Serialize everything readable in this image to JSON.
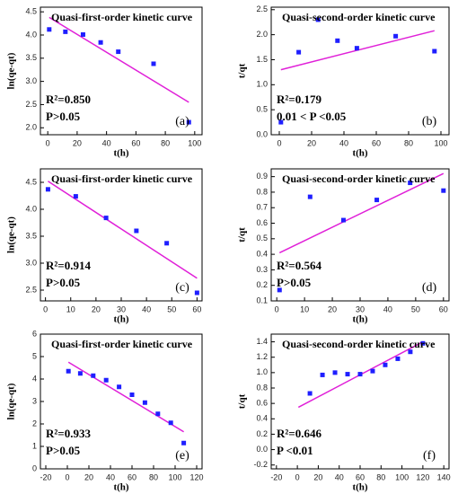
{
  "chart_data": [
    {
      "type": "scatter",
      "title": "Quasi-first-order kinetic curve",
      "xlabel": "t(h)",
      "ylabel": "ln(qe-qt)",
      "x": [
        1,
        12,
        24,
        36,
        48,
        72,
        96
      ],
      "values": [
        4.12,
        4.07,
        4.01,
        3.84,
        3.64,
        3.38,
        2.12
      ],
      "fit": {
        "x": [
          1,
          96
        ],
        "y": [
          4.38,
          2.55
        ]
      },
      "annotations": [
        "R²=0.850",
        "P>0.05"
      ],
      "panel_label": "(a)",
      "xlim": [
        -5,
        105
      ],
      "xticks": [
        0,
        20,
        40,
        60,
        80,
        100
      ],
      "ylim": [
        1.85,
        4.6
      ],
      "yticks": [
        {
          "value": 2,
          "label": "2.0"
        },
        2.5,
        {
          "value": 3,
          "label": "3.0"
        },
        3.5,
        {
          "value": 4,
          "label": "4.0"
        },
        4.5
      ],
      "point_color": "#1f1fff",
      "line_color": "#e020d8"
    },
    {
      "type": "scatter",
      "title": "Quasi-second-order kinetic curve",
      "xlabel": "t(h)",
      "ylabel": "t/qt",
      "x": [
        1,
        12,
        24,
        36,
        48,
        72,
        96
      ],
      "values": [
        0.25,
        1.65,
        2.3,
        1.88,
        1.73,
        1.97,
        1.67
      ],
      "fit": {
        "x": [
          1,
          96
        ],
        "y": [
          1.3,
          2.08
        ]
      },
      "annotations": [
        "R²=0.179",
        "0.01 < P <0.05"
      ],
      "panel_label": "(b)",
      "xlim": [
        -5,
        105
      ],
      "xticks": [
        0,
        20,
        40,
        60,
        80,
        100
      ],
      "ylim": [
        0,
        2.55
      ],
      "yticks": [
        {
          "value": 0,
          "label": "0.0"
        },
        0.5,
        {
          "value": 1,
          "label": "1.0"
        },
        1.5,
        {
          "value": 2,
          "label": "2.0"
        },
        2.5
      ],
      "point_color": "#1f1fff",
      "line_color": "#e020d8"
    },
    {
      "type": "scatter",
      "title": "Quasi-first-order kinetic curve",
      "xlabel": "t(h)",
      "ylabel": "ln(qe-qt)",
      "x": [
        1,
        12,
        24,
        36,
        48,
        60
      ],
      "values": [
        4.37,
        4.24,
        3.84,
        3.6,
        3.37,
        2.45
      ],
      "fit": {
        "x": [
          1,
          60
        ],
        "y": [
          4.52,
          2.72
        ]
      },
      "annotations": [
        "R²=0.914",
        "P>0.05"
      ],
      "panel_label": "(c)",
      "xlim": [
        -2,
        62
      ],
      "xticks": [
        0,
        10,
        20,
        30,
        40,
        50,
        60
      ],
      "ylim": [
        2.3,
        4.75
      ],
      "yticks": [
        2.5,
        {
          "value": 3,
          "label": "3.0"
        },
        3.5,
        {
          "value": 4,
          "label": "4.0"
        },
        4.5
      ],
      "point_color": "#1f1fff",
      "line_color": "#e020d8"
    },
    {
      "type": "scatter",
      "title": "Quasi-second-order kinetic curve",
      "xlabel": "t(h)",
      "ylabel": "t/qt",
      "x": [
        1,
        12,
        24,
        36,
        48,
        60
      ],
      "values": [
        0.17,
        0.77,
        0.62,
        0.75,
        0.86,
        0.81
      ],
      "fit": {
        "x": [
          1,
          60
        ],
        "y": [
          0.41,
          0.92
        ]
      },
      "annotations": [
        "R²=0.564",
        "P>0.05"
      ],
      "panel_label": "(d)",
      "xlim": [
        -2,
        62
      ],
      "xticks": [
        0,
        10,
        20,
        30,
        40,
        50,
        60
      ],
      "ylim": [
        0.1,
        0.95
      ],
      "yticks": [
        0.1,
        0.2,
        0.3,
        0.4,
        0.5,
        0.6,
        0.7,
        0.8,
        0.9
      ],
      "point_color": "#1f1fff",
      "line_color": "#e020d8"
    },
    {
      "type": "scatter",
      "title": "Quasi-first-order kinetic curve",
      "xlabel": "t(h)",
      "ylabel": "ln(qe-qt)",
      "x": [
        1,
        12,
        24,
        36,
        48,
        60,
        72,
        84,
        96,
        108
      ],
      "values": [
        4.35,
        4.25,
        4.15,
        3.95,
        3.65,
        3.3,
        2.95,
        2.45,
        2.05,
        1.15
      ],
      "fit": {
        "x": [
          1,
          108
        ],
        "y": [
          4.75,
          1.65
        ]
      },
      "annotations": [
        "R²=0.933",
        "P>0.05"
      ],
      "panel_label": "(e)",
      "xlim": [
        -25,
        125
      ],
      "xticks": [
        -20,
        0,
        20,
        40,
        60,
        80,
        100,
        120
      ],
      "ylim": [
        0,
        6
      ],
      "yticks": [
        0,
        1,
        2,
        3,
        4,
        5,
        6
      ],
      "point_color": "#1f1fff",
      "line_color": "#e020d8"
    },
    {
      "type": "scatter",
      "title": "Quasi-second-order kinetic curve",
      "xlabel": "t(h)",
      "ylabel": "t/qt",
      "x": [
        12,
        24,
        36,
        48,
        60,
        72,
        84,
        96,
        108,
        120
      ],
      "values": [
        0.73,
        0.97,
        1.0,
        0.98,
        0.98,
        1.02,
        1.1,
        1.18,
        1.27,
        1.38
      ],
      "fit": {
        "x": [
          1,
          120
        ],
        "y": [
          0.55,
          1.4
        ]
      },
      "annotations": [
        "R²=0.646",
        "P <0.01"
      ],
      "panel_label": "(f)",
      "xlim": [
        -25,
        145
      ],
      "xticks": [
        -20,
        0,
        20,
        40,
        60,
        80,
        100,
        120,
        140
      ],
      "ylim": [
        -0.25,
        1.5
      ],
      "yticks": [
        -0.2,
        {
          "value": 0,
          "label": "0.0"
        },
        0.2,
        0.4,
        0.6,
        0.8,
        {
          "value": 1,
          "label": "1.0"
        },
        1.2,
        1.4
      ],
      "point_color": "#1f1fff",
      "line_color": "#e020d8"
    }
  ]
}
